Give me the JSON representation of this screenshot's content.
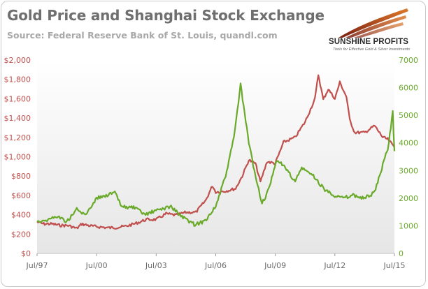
{
  "header": {
    "title": "Gold Price and Shanghai Stock Exchange",
    "subtitle": "Source: Federal Reserve Bank of St. Louis, quandl.com"
  },
  "logo": {
    "name": "SUNSHINE PROFITS",
    "tagline": "Tools for Effective Gold & Silver Investments"
  },
  "colors": {
    "gold": "#c0504d",
    "sse": "#6aaa2a",
    "left_axis": "#c0504d",
    "right_axis": "#6aaa2a",
    "x_axis": "#6a6a6a"
  },
  "chart_data": {
    "type": "line",
    "title": "Gold Price and Shanghai Stock Exchange",
    "x_range": [
      "1997-07",
      "2015-07"
    ],
    "x_tick_labels": [
      "Jul/97",
      "Jul/00",
      "Jul/03",
      "Jul/06",
      "Jul/09",
      "Jul/12",
      "Jul/15"
    ],
    "y_left": {
      "range": [
        0,
        2000
      ],
      "tick_labels": [
        "$0",
        "$200",
        "$400",
        "$600",
        "$800",
        "$1,000",
        "$1,200",
        "$1,400",
        "$1,600",
        "$1,800",
        "$2,000"
      ]
    },
    "y_right": {
      "range": [
        0,
        7000
      ],
      "tick_labels": [
        "0",
        "1000",
        "2000",
        "3000",
        "4000",
        "5000",
        "6000",
        "7000"
      ]
    },
    "grid": false,
    "series": [
      {
        "axis": "left",
        "points": [
          [
            "1997-07",
            325
          ],
          [
            "1997-11",
            305
          ],
          [
            "1998-04",
            305
          ],
          [
            "1998-09",
            290
          ],
          [
            "1999-02",
            288
          ],
          [
            "1999-07",
            258
          ],
          [
            "1999-10",
            305
          ],
          [
            "2000-03",
            285
          ],
          [
            "2000-08",
            275
          ],
          [
            "2001-02",
            265
          ],
          [
            "2001-07",
            268
          ],
          [
            "2002-01",
            282
          ],
          [
            "2002-07",
            312
          ],
          [
            "2003-01",
            350
          ],
          [
            "2003-07",
            350
          ],
          [
            "2004-01",
            410
          ],
          [
            "2004-07",
            395
          ],
          [
            "2005-01",
            425
          ],
          [
            "2005-07",
            425
          ],
          [
            "2006-01",
            550
          ],
          [
            "2006-05",
            700
          ],
          [
            "2006-07",
            635
          ],
          [
            "2007-01",
            645
          ],
          [
            "2007-07",
            670
          ],
          [
            "2007-11",
            800
          ],
          [
            "2008-03",
            965
          ],
          [
            "2008-07",
            930
          ],
          [
            "2008-10",
            740
          ],
          [
            "2009-02",
            950
          ],
          [
            "2009-07",
            930
          ],
          [
            "2009-12",
            1150
          ],
          [
            "2010-07",
            1200
          ],
          [
            "2011-01",
            1360
          ],
          [
            "2011-07",
            1600
          ],
          [
            "2011-09",
            1850
          ],
          [
            "2011-12",
            1590
          ],
          [
            "2012-03",
            1700
          ],
          [
            "2012-07",
            1600
          ],
          [
            "2012-10",
            1770
          ],
          [
            "2013-02",
            1620
          ],
          [
            "2013-04",
            1380
          ],
          [
            "2013-07",
            1250
          ],
          [
            "2014-01",
            1250
          ],
          [
            "2014-07",
            1320
          ],
          [
            "2014-12",
            1200
          ],
          [
            "2015-03",
            1180
          ],
          [
            "2015-07",
            1100
          ]
        ]
      },
      {
        "axis": "right",
        "points": [
          [
            "1997-07",
            1170
          ],
          [
            "1998-01",
            1200
          ],
          [
            "1998-07",
            1350
          ],
          [
            "1999-01",
            1150
          ],
          [
            "1999-07",
            1600
          ],
          [
            "1999-12",
            1380
          ],
          [
            "2000-07",
            2000
          ],
          [
            "2001-06",
            2200
          ],
          [
            "2001-10",
            1700
          ],
          [
            "2002-06",
            1650
          ],
          [
            "2002-12",
            1400
          ],
          [
            "2003-07",
            1550
          ],
          [
            "2004-04",
            1700
          ],
          [
            "2004-10",
            1350
          ],
          [
            "2005-06",
            1050
          ],
          [
            "2005-12",
            1150
          ],
          [
            "2006-07",
            1700
          ],
          [
            "2007-01",
            2800
          ],
          [
            "2007-06",
            4200
          ],
          [
            "2007-10",
            6100
          ],
          [
            "2008-03",
            4000
          ],
          [
            "2008-07",
            2800
          ],
          [
            "2008-11",
            1800
          ],
          [
            "2009-03",
            2300
          ],
          [
            "2009-08",
            3400
          ],
          [
            "2010-01",
            3100
          ],
          [
            "2010-07",
            2600
          ],
          [
            "2010-11",
            3100
          ],
          [
            "2011-06",
            2800
          ],
          [
            "2012-01",
            2300
          ],
          [
            "2012-07",
            2100
          ],
          [
            "2012-12",
            2000
          ],
          [
            "2013-06",
            2100
          ],
          [
            "2014-01",
            2000
          ],
          [
            "2014-07",
            2200
          ],
          [
            "2014-12",
            3200
          ],
          [
            "2015-03",
            3800
          ],
          [
            "2015-06",
            5100
          ],
          [
            "2015-07",
            3700
          ]
        ]
      }
    ]
  }
}
